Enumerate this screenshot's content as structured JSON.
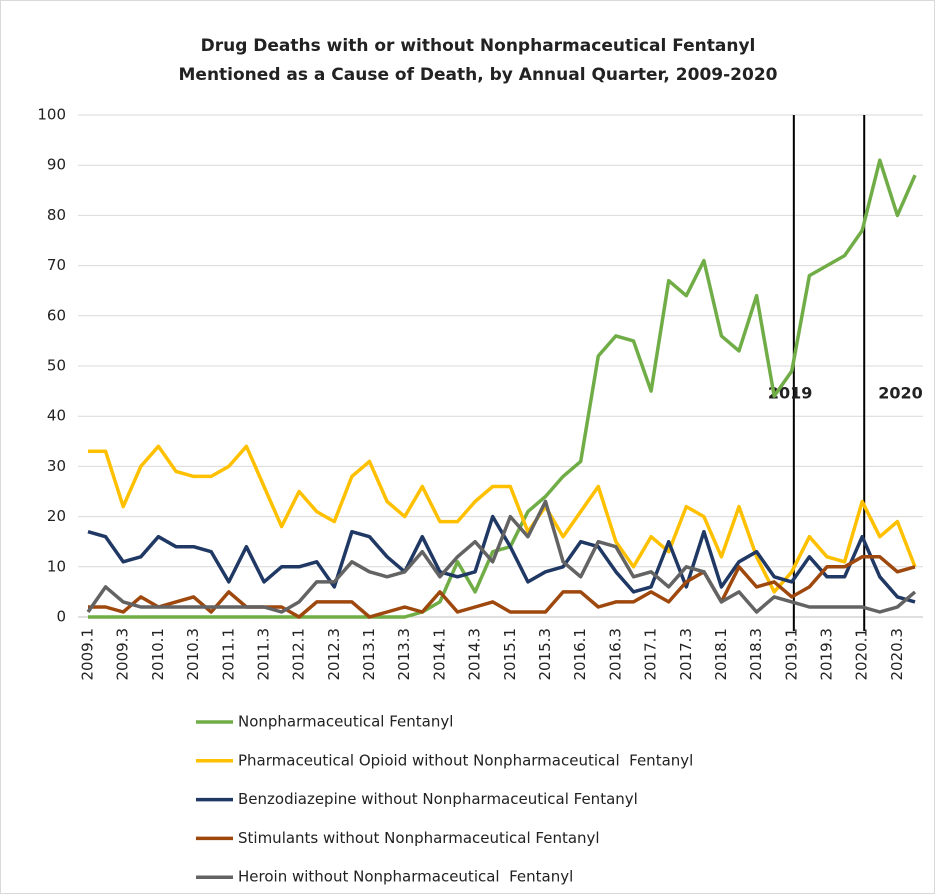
{
  "chart_data": {
    "type": "line",
    "title": [
      "Drug Deaths with or without Nonpharmaceutical Fentanyl",
      "Mentioned as a Cause of Death, by Annual Quarter, 2009-2020"
    ],
    "categories": [
      "2009.1",
      null,
      "2009.3",
      null,
      "2010.1",
      null,
      "2010.3",
      null,
      "2011.1",
      null,
      "2011.3",
      null,
      "2012.1",
      null,
      "2012.3",
      null,
      "2013.1",
      null,
      "2013.3",
      null,
      "2014.1",
      null,
      "2014.3",
      null,
      "2015.1",
      null,
      "2015.3",
      null,
      "2016.1",
      null,
      "2016.3",
      null,
      "2017.1",
      null,
      "2017.3",
      null,
      "2018.1",
      null,
      "2018.3",
      null,
      "2019.1",
      null,
      "2019.3",
      null,
      "2020.1",
      null,
      "2020.3",
      null
    ],
    "ylim": [
      0,
      100
    ],
    "yticks": [
      0,
      10,
      20,
      30,
      40,
      50,
      60,
      70,
      80,
      90,
      100
    ],
    "grid": true,
    "series": [
      {
        "name": "Nonpharmaceutical Fentanyl",
        "color": "#70ad47",
        "values": [
          0,
          0,
          0,
          0,
          0,
          0,
          0,
          0,
          0,
          0,
          0,
          0,
          0,
          0,
          0,
          0,
          0,
          0,
          0,
          1,
          3,
          11,
          5,
          13,
          14,
          21,
          24,
          28,
          31,
          52,
          56,
          55,
          45,
          67,
          64,
          71,
          56,
          53,
          64,
          44,
          49,
          68,
          70,
          72,
          77,
          91,
          80,
          88
        ]
      },
      {
        "name": "Pharmaceutical Opioid without Nonpharmaceutical  Fentanyl",
        "color": "#ffc000",
        "values": [
          33,
          33,
          22,
          30,
          34,
          29,
          28,
          28,
          30,
          34,
          26,
          18,
          25,
          21,
          19,
          28,
          31,
          23,
          20,
          26,
          19,
          19,
          23,
          26,
          26,
          17,
          22,
          16,
          21,
          26,
          15,
          10,
          16,
          13,
          22,
          20,
          12,
          22,
          12,
          5,
          9,
          16,
          12,
          11,
          23,
          16,
          19,
          10
        ]
      },
      {
        "name": "Benzodiazepine without Nonpharmaceutical Fentanyl",
        "color": "#203864",
        "values": [
          17,
          16,
          11,
          12,
          16,
          14,
          14,
          13,
          7,
          14,
          7,
          10,
          10,
          11,
          6,
          17,
          16,
          12,
          9,
          16,
          9,
          8,
          9,
          20,
          14,
          7,
          9,
          10,
          15,
          14,
          9,
          5,
          6,
          15,
          6,
          17,
          6,
          11,
          13,
          8,
          7,
          12,
          8,
          8,
          16,
          8,
          4,
          3
        ]
      },
      {
        "name": "Stimulants without Nonpharmaceutical Fentanyl",
        "color": "#9e480e",
        "values": [
          2,
          2,
          1,
          4,
          2,
          3,
          4,
          1,
          5,
          2,
          2,
          2,
          0,
          3,
          3,
          3,
          0,
          1,
          2,
          1,
          5,
          1,
          2,
          3,
          1,
          1,
          1,
          5,
          5,
          2,
          3,
          3,
          5,
          3,
          7,
          9,
          3,
          10,
          6,
          7,
          4,
          6,
          10,
          10,
          12,
          12,
          9,
          10
        ]
      },
      {
        "name": "Heroin without Nonpharmaceutical  Fentanyl",
        "color": "#636363",
        "values": [
          1,
          6,
          3,
          2,
          2,
          2,
          2,
          2,
          2,
          2,
          2,
          1,
          3,
          7,
          7,
          11,
          9,
          8,
          9,
          13,
          8,
          12,
          15,
          11,
          20,
          16,
          23,
          11,
          8,
          15,
          14,
          8,
          9,
          6,
          10,
          9,
          3,
          5,
          1,
          4,
          3,
          2,
          2,
          2,
          2,
          1,
          2,
          5
        ]
      }
    ],
    "annotations": [
      {
        "label": "2019",
        "x": "2019.1"
      },
      {
        "label": "2020",
        "x": "2020.1"
      }
    ]
  }
}
